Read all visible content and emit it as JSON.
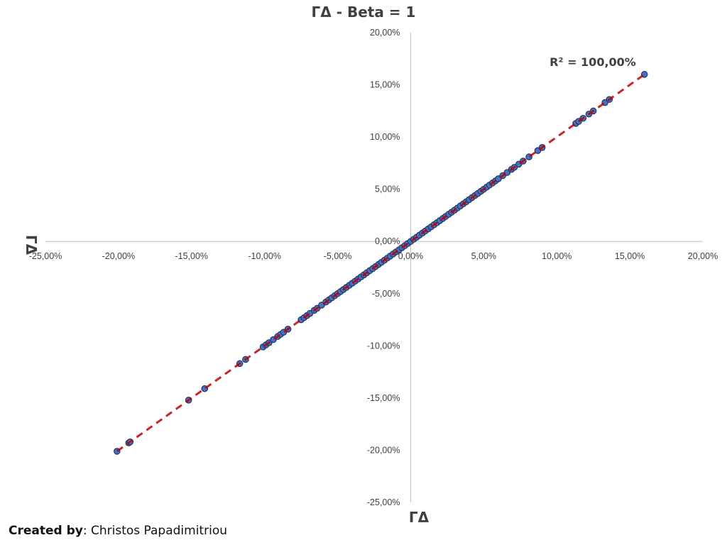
{
  "chart_data": {
    "type": "scatter",
    "title": "ΓΔ - Beta = 1",
    "xlabel": "ΓΔ",
    "ylabel": "ΓΔ",
    "xlim": [
      -0.25,
      0.2
    ],
    "ylim": [
      -0.25,
      0.2
    ],
    "x_ticks": [
      "-25,00%",
      "-20,00%",
      "-15,00%",
      "-10,00%",
      "-5,00%",
      "0,00%",
      "5,00%",
      "10,00%",
      "15,00%",
      "20,00%"
    ],
    "y_ticks": [
      "20,00%",
      "15,00%",
      "10,00%",
      "5,00%",
      "0,00%",
      "-5,00%",
      "-10,00%",
      "-15,00%",
      "-20,00%",
      "-25,00%"
    ],
    "annotation": "R² = 100,00%",
    "trendline": {
      "style": "dashed",
      "color": "#c00000",
      "slope": 1,
      "intercept": 0
    },
    "marker_color": "#4472c4",
    "marker_edge": "#1f3864",
    "points_x": [
      -0.201,
      -0.193,
      -0.192,
      -0.152,
      -0.141,
      -0.117,
      -0.113,
      -0.101,
      -0.099,
      -0.097,
      -0.094,
      -0.091,
      -0.089,
      -0.087,
      -0.084,
      -0.075,
      -0.073,
      -0.071,
      -0.069,
      -0.066,
      -0.064,
      -0.061,
      -0.058,
      -0.056,
      -0.054,
      -0.052,
      -0.05,
      -0.048,
      -0.046,
      -0.044,
      -0.042,
      -0.04,
      -0.038,
      -0.036,
      -0.034,
      -0.032,
      -0.03,
      -0.028,
      -0.026,
      -0.024,
      -0.022,
      -0.02,
      -0.018,
      -0.016,
      -0.014,
      -0.012,
      -0.01,
      -0.008,
      -0.006,
      -0.004,
      -0.002,
      0.0,
      0.002,
      0.004,
      0.006,
      0.008,
      0.01,
      0.012,
      0.014,
      0.016,
      0.018,
      0.02,
      0.022,
      0.024,
      0.026,
      0.028,
      0.03,
      0.032,
      0.034,
      0.036,
      0.038,
      0.04,
      0.042,
      0.044,
      0.046,
      0.048,
      0.05,
      0.052,
      0.054,
      0.056,
      0.058,
      0.06,
      0.063,
      0.066,
      0.069,
      0.071,
      0.074,
      0.077,
      0.081,
      0.087,
      0.09,
      0.113,
      0.115,
      0.118,
      0.122,
      0.125,
      0.133,
      0.136,
      0.16
    ],
    "points_y": [
      -0.201,
      -0.193,
      -0.192,
      -0.152,
      -0.141,
      -0.117,
      -0.113,
      -0.101,
      -0.099,
      -0.097,
      -0.094,
      -0.091,
      -0.089,
      -0.087,
      -0.084,
      -0.075,
      -0.073,
      -0.071,
      -0.069,
      -0.066,
      -0.064,
      -0.061,
      -0.058,
      -0.056,
      -0.054,
      -0.052,
      -0.05,
      -0.048,
      -0.046,
      -0.044,
      -0.042,
      -0.04,
      -0.038,
      -0.036,
      -0.034,
      -0.032,
      -0.03,
      -0.028,
      -0.026,
      -0.024,
      -0.022,
      -0.02,
      -0.018,
      -0.016,
      -0.014,
      -0.012,
      -0.01,
      -0.008,
      -0.006,
      -0.004,
      -0.002,
      0.0,
      0.002,
      0.004,
      0.006,
      0.008,
      0.01,
      0.012,
      0.014,
      0.016,
      0.018,
      0.02,
      0.022,
      0.024,
      0.026,
      0.028,
      0.03,
      0.032,
      0.034,
      0.036,
      0.038,
      0.04,
      0.042,
      0.044,
      0.046,
      0.048,
      0.05,
      0.052,
      0.054,
      0.056,
      0.058,
      0.06,
      0.063,
      0.066,
      0.069,
      0.071,
      0.074,
      0.077,
      0.081,
      0.087,
      0.09,
      0.113,
      0.115,
      0.118,
      0.122,
      0.125,
      0.133,
      0.136,
      0.16
    ]
  },
  "credit": {
    "label": "Created by",
    "text": ": Christos Papadimitriou"
  }
}
